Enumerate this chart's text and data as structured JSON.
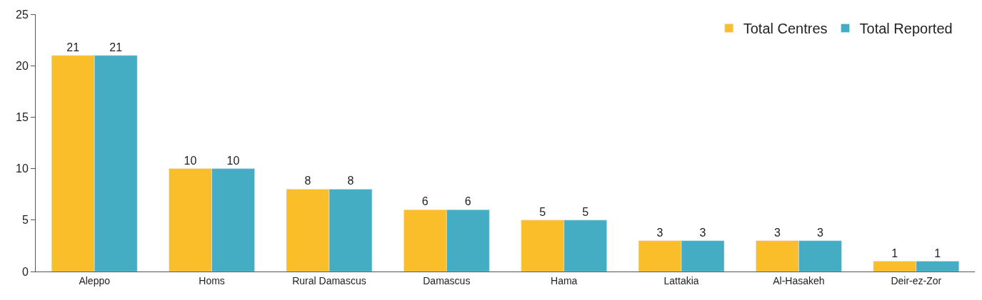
{
  "chart_data": {
    "type": "bar",
    "categories": [
      "Aleppo",
      "Homs",
      "Rural Damascus",
      "Damascus",
      "Hama",
      "Lattakia",
      "Al-Hasakeh",
      "Deir-ez-Zor"
    ],
    "series": [
      {
        "name": "Total Centres",
        "color": "#fbbe2b",
        "values": [
          21,
          10,
          8,
          6,
          5,
          3,
          3,
          1
        ]
      },
      {
        "name": "Total Reported",
        "color": "#45adc3",
        "values": [
          21,
          10,
          8,
          6,
          5,
          3,
          3,
          1
        ]
      }
    ],
    "ylim": [
      0,
      25
    ],
    "yticks": [
      0,
      5,
      10,
      15,
      20,
      25
    ],
    "legend": "top right",
    "data_labels": true
  }
}
